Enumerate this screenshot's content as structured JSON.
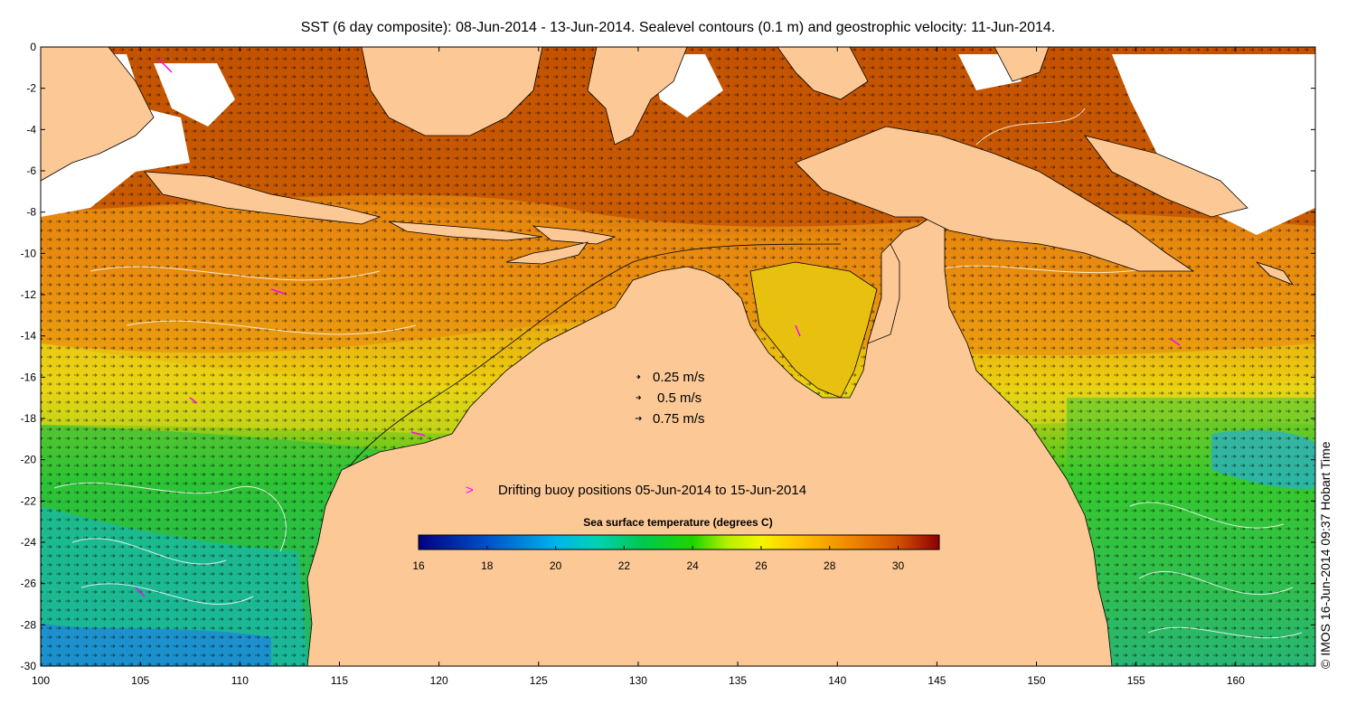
{
  "title": "SST (6 day composite): 08-Jun-2014 - 13-Jun-2014. Sealevel contours (0.1 m) and geostrophic velocity: 11-Jun-2014.",
  "credit": "© IMOS 16-Jun-2014 09:37 Hobart Time",
  "map": {
    "lon_range": [
      100,
      164
    ],
    "lat_range": [
      -30,
      0
    ],
    "lon_ticks": [
      100,
      105,
      110,
      115,
      120,
      125,
      130,
      135,
      140,
      145,
      150,
      155,
      160
    ],
    "lat_ticks": [
      0,
      -2,
      -4,
      -6,
      -8,
      -10,
      -12,
      -14,
      -16,
      -18,
      -20,
      -22,
      -24,
      -26,
      -28,
      -30
    ],
    "land_color": "#fcc895",
    "cloud_color": "#ffffff"
  },
  "velocity_legend": {
    "items": [
      {
        "label": "0.25 m/s",
        "speed": 0.25
      },
      {
        "label": "0.5 m/s",
        "speed": 0.5
      },
      {
        "label": "0.75 m/s",
        "speed": 0.75
      }
    ]
  },
  "buoy_legend": {
    "label": "Drifting buoy positions 05-Jun-2014 to 15-Jun-2014",
    "color": "#ff00ff"
  },
  "colorbar": {
    "title": "Sea surface temperature (degrees C)",
    "min": 16,
    "max": 31.2,
    "ticks": [
      16,
      18,
      20,
      22,
      24,
      26,
      28,
      30
    ],
    "stops": [
      {
        "value": 16,
        "color": "#00007f"
      },
      {
        "value": 18,
        "color": "#0050c8"
      },
      {
        "value": 20,
        "color": "#00b4ea"
      },
      {
        "value": 21.2,
        "color": "#00d2b4"
      },
      {
        "value": 22.5,
        "color": "#00c850"
      },
      {
        "value": 24,
        "color": "#1ed400"
      },
      {
        "value": 25,
        "color": "#b4f000"
      },
      {
        "value": 26,
        "color": "#f5f500"
      },
      {
        "value": 27,
        "color": "#ffc800"
      },
      {
        "value": 28.5,
        "color": "#f08c00"
      },
      {
        "value": 30,
        "color": "#d25000"
      },
      {
        "value": 31.2,
        "color": "#8c0000"
      }
    ]
  }
}
